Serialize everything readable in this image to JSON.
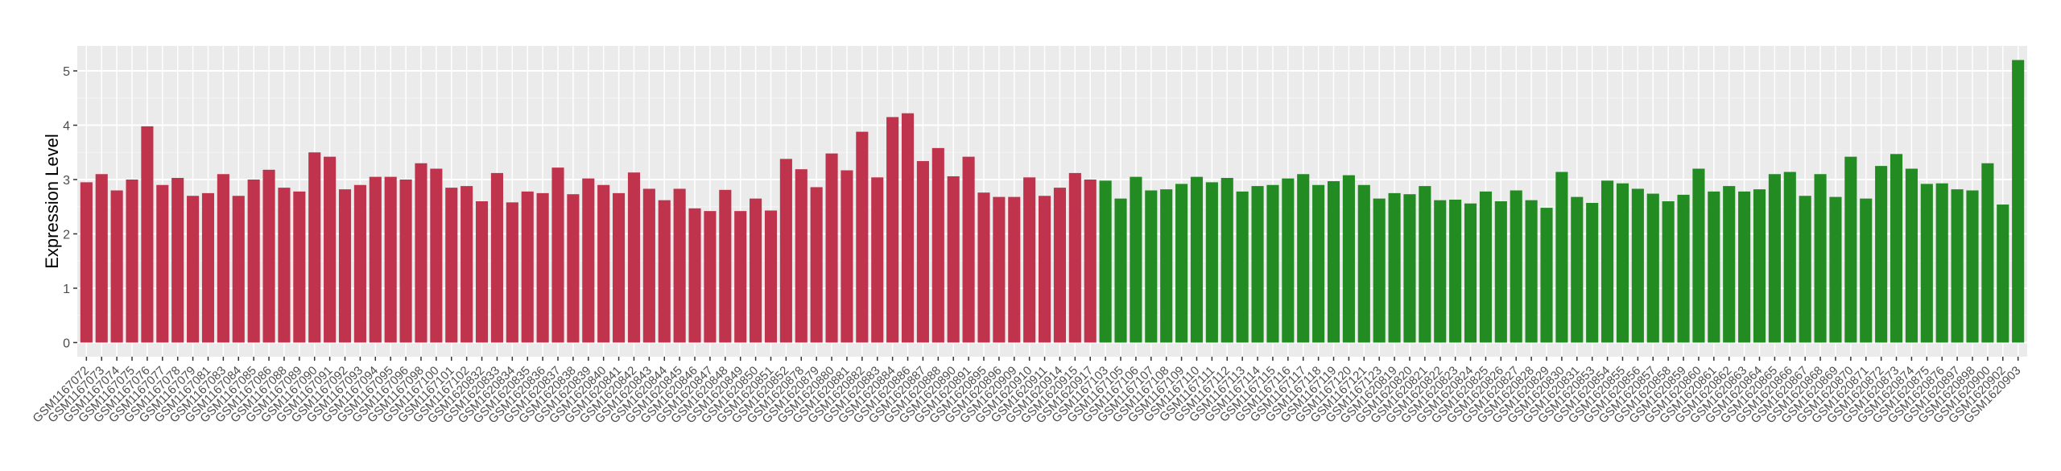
{
  "chart_data": {
    "type": "bar",
    "y_label": "Expression Level",
    "categories": [
      "GSM1167072",
      "GSM1167073",
      "GSM1167074",
      "GSM1167075",
      "GSM1167076",
      "GSM1167077",
      "GSM1167078",
      "GSM1167079",
      "GSM1167081",
      "GSM1167083",
      "GSM1167084",
      "GSM1167085",
      "GSM1167086",
      "GSM1167088",
      "GSM1167089",
      "GSM1167090",
      "GSM1167091",
      "GSM1167092",
      "GSM1167093",
      "GSM1167094",
      "GSM1167095",
      "GSM1167096",
      "GSM1167098",
      "GSM1167100",
      "GSM1167101",
      "GSM1167102",
      "GSM1620832",
      "GSM1620833",
      "GSM1620834",
      "GSM1620835",
      "GSM1620836",
      "GSM1620837",
      "GSM1620838",
      "GSM1620839",
      "GSM1620840",
      "GSM1620841",
      "GSM1620842",
      "GSM1620843",
      "GSM1620844",
      "GSM1620845",
      "GSM1620846",
      "GSM1620847",
      "GSM1620848",
      "GSM1620849",
      "GSM1620850",
      "GSM1620851",
      "GSM1620852",
      "GSM1620878",
      "GSM1620879",
      "GSM1620880",
      "GSM1620881",
      "GSM1620882",
      "GSM1620883",
      "GSM1620884",
      "GSM1620886",
      "GSM1620887",
      "GSM1620888",
      "GSM1620890",
      "GSM1620891",
      "GSM1620895",
      "GSM1620896",
      "GSM1620909",
      "GSM1620910",
      "GSM1620911",
      "GSM1620914",
      "GSM1620915",
      "GSM1620917",
      "GSM1167103",
      "GSM1167105",
      "GSM1167106",
      "GSM1167107",
      "GSM1167108",
      "GSM1167109",
      "GSM1167110",
      "GSM1167111",
      "GSM1167112",
      "GSM1167113",
      "GSM1167114",
      "GSM1167115",
      "GSM1167116",
      "GSM1167117",
      "GSM1167118",
      "GSM1167119",
      "GSM1167120",
      "GSM1167121",
      "GSM1167123",
      "GSM1620819",
      "GSM1620820",
      "GSM1620821",
      "GSM1620822",
      "GSM1620823",
      "GSM1620824",
      "GSM1620825",
      "GSM1620826",
      "GSM1620827",
      "GSM1620828",
      "GSM1620829",
      "GSM1620830",
      "GSM1620831",
      "GSM1620853",
      "GSM1620854",
      "GSM1620855",
      "GSM1620856",
      "GSM1620857",
      "GSM1620858",
      "GSM1620859",
      "GSM1620860",
      "GSM1620861",
      "GSM1620862",
      "GSM1620863",
      "GSM1620864",
      "GSM1620865",
      "GSM1620866",
      "GSM1620867",
      "GSM1620868",
      "GSM1620869",
      "GSM1620870",
      "GSM1620871",
      "GSM1620872",
      "GSM1620873",
      "GSM1620874",
      "GSM1620875",
      "GSM1620876",
      "GSM1620897",
      "GSM1620898",
      "GSM1620900",
      "GSM1620902",
      "GSM1620903"
    ],
    "values": [
      2.95,
      3.1,
      2.8,
      3.0,
      3.98,
      2.9,
      3.03,
      2.7,
      2.75,
      3.1,
      2.7,
      3.0,
      3.18,
      2.85,
      2.78,
      3.5,
      3.42,
      2.82,
      2.9,
      3.05,
      3.05,
      3.0,
      3.3,
      3.2,
      2.85,
      2.88,
      2.6,
      3.12,
      2.58,
      2.78,
      2.75,
      3.22,
      2.73,
      3.02,
      2.9,
      2.75,
      3.13,
      2.83,
      2.62,
      2.83,
      2.47,
      2.42,
      2.81,
      2.42,
      2.65,
      2.43,
      3.38,
      3.19,
      2.86,
      3.48,
      3.17,
      3.88,
      3.04,
      4.15,
      4.22,
      3.34,
      3.58,
      3.06,
      3.42,
      2.76,
      2.68,
      2.68,
      3.04,
      2.7,
      2.85,
      3.12,
      3.0,
      2.98,
      2.65,
      3.05,
      2.8,
      2.82,
      2.92,
      3.05,
      2.95,
      3.03,
      2.78,
      2.88,
      2.9,
      3.02,
      3.1,
      2.9,
      2.97,
      3.08,
      2.9,
      2.65,
      2.75,
      2.73,
      2.88,
      2.62,
      2.63,
      2.56,
      2.78,
      2.6,
      2.8,
      2.62,
      2.48,
      3.14,
      2.68,
      2.57,
      2.98,
      2.93,
      2.83,
      2.74,
      2.6,
      2.72,
      3.2,
      2.78,
      2.88,
      2.78,
      2.82,
      3.1,
      3.14,
      2.7,
      3.1,
      2.68,
      3.42,
      2.65,
      3.25,
      3.47,
      3.2,
      2.92,
      2.93,
      2.82,
      2.8,
      3.3,
      2.54,
      5.2
    ],
    "colors": [
      "#c0334d",
      "#c0334d",
      "#c0334d",
      "#c0334d",
      "#c0334d",
      "#c0334d",
      "#c0334d",
      "#c0334d",
      "#c0334d",
      "#c0334d",
      "#c0334d",
      "#c0334d",
      "#c0334d",
      "#c0334d",
      "#c0334d",
      "#c0334d",
      "#c0334d",
      "#c0334d",
      "#c0334d",
      "#c0334d",
      "#c0334d",
      "#c0334d",
      "#c0334d",
      "#c0334d",
      "#c0334d",
      "#c0334d",
      "#c0334d",
      "#c0334d",
      "#c0334d",
      "#c0334d",
      "#c0334d",
      "#c0334d",
      "#c0334d",
      "#c0334d",
      "#c0334d",
      "#c0334d",
      "#c0334d",
      "#c0334d",
      "#c0334d",
      "#c0334d",
      "#c0334d",
      "#c0334d",
      "#c0334d",
      "#c0334d",
      "#c0334d",
      "#c0334d",
      "#c0334d",
      "#c0334d",
      "#c0334d",
      "#c0334d",
      "#c0334d",
      "#c0334d",
      "#c0334d",
      "#c0334d",
      "#c0334d",
      "#c0334d",
      "#c0334d",
      "#c0334d",
      "#c0334d",
      "#c0334d",
      "#c0334d",
      "#c0334d",
      "#c0334d",
      "#c0334d",
      "#c0334d",
      "#c0334d",
      "#c0334d",
      "#228b22",
      "#228b22",
      "#228b22",
      "#228b22",
      "#228b22",
      "#228b22",
      "#228b22",
      "#228b22",
      "#228b22",
      "#228b22",
      "#228b22",
      "#228b22",
      "#228b22",
      "#228b22",
      "#228b22",
      "#228b22",
      "#228b22",
      "#228b22",
      "#228b22",
      "#228b22",
      "#228b22",
      "#228b22",
      "#228b22",
      "#228b22",
      "#228b22",
      "#228b22",
      "#228b22",
      "#228b22",
      "#228b22",
      "#228b22",
      "#228b22",
      "#228b22",
      "#228b22",
      "#228b22",
      "#228b22",
      "#228b22",
      "#228b22",
      "#228b22",
      "#228b22",
      "#228b22",
      "#228b22",
      "#228b22",
      "#228b22",
      "#228b22",
      "#228b22",
      "#228b22",
      "#228b22",
      "#228b22",
      "#228b22",
      "#228b22",
      "#228b22",
      "#228b22",
      "#228b22",
      "#228b22",
      "#228b22",
      "#228b22",
      "#228b22",
      "#228b22",
      "#228b22",
      "#228b22",
      "#228b22"
    ],
    "ylim": [
      -0.26,
      5.46
    ],
    "yticks": [
      0,
      1,
      2,
      3,
      4,
      5
    ],
    "grid": true
  }
}
